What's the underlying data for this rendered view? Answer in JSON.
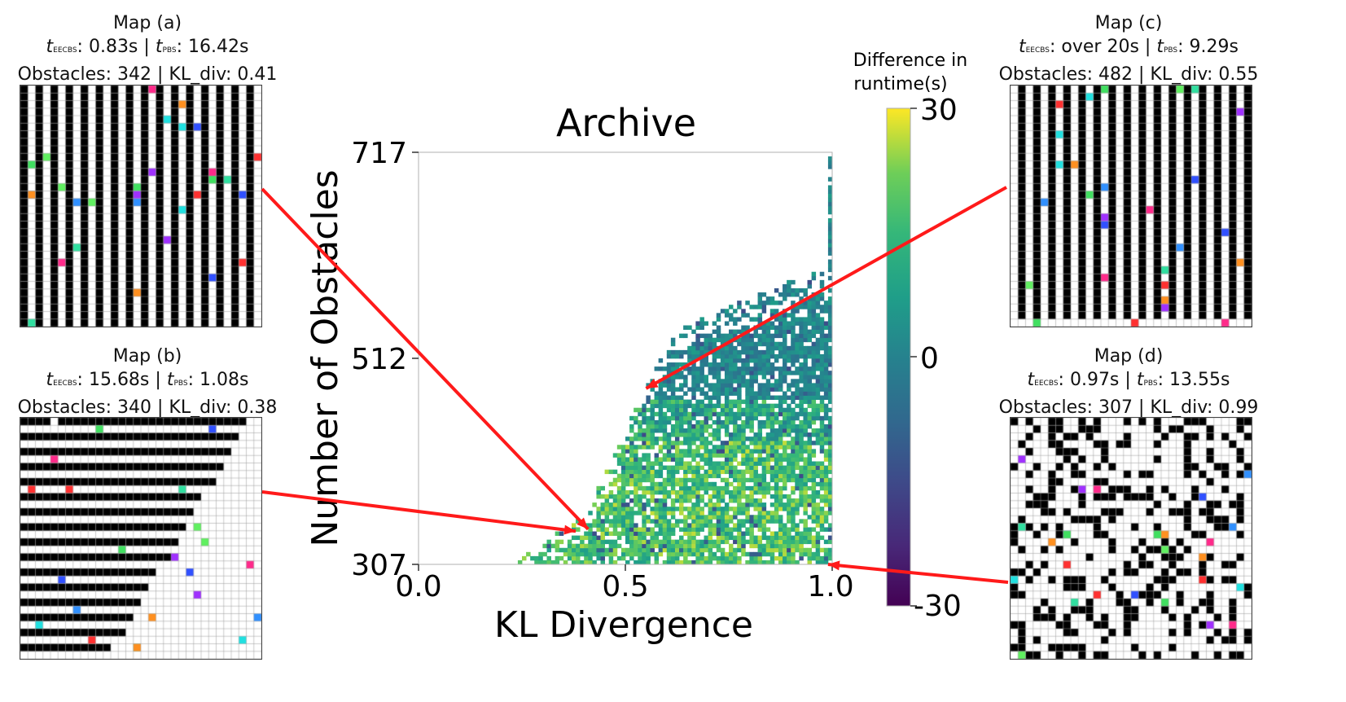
{
  "chart_data": {
    "type": "heatmap",
    "title": "Archive",
    "xlabel": "KL Divergence",
    "ylabel": "Number of Obstacles",
    "xlim": [
      0.0,
      1.0
    ],
    "ylim": [
      307,
      717
    ],
    "xticks": [
      "0.0",
      "0.5",
      "1.0"
    ],
    "yticks": [
      "307",
      "512",
      "717"
    ],
    "colorbar": {
      "label_line1": "Difference in",
      "label_line2": "runtime(s)",
      "range": [
        -30,
        30
      ],
      "ticks": [
        "30",
        "0",
        "-30"
      ],
      "colormap": "viridis"
    },
    "highlighted_points": [
      {
        "map": "Map (a)",
        "kl_div": 0.41,
        "obstacles": 342
      },
      {
        "map": "Map (b)",
        "kl_div": 0.38,
        "obstacles": 340
      },
      {
        "map": "Map (c)",
        "kl_div": 0.55,
        "obstacles": 482
      },
      {
        "map": "Map (d)",
        "kl_div": 0.99,
        "obstacles": 307
      }
    ]
  },
  "maps": {
    "a": {
      "title": "Map (a)",
      "sub_eecbs": "EECBS",
      "val_eecbs": ": 0.83s",
      "sep": " | ",
      "sub_pbs": "PBS",
      "val_pbs": ": 16.42s",
      "line3": "Obstacles: 342 | KL_div: 0.41"
    },
    "b": {
      "title": "Map (b)",
      "sub_eecbs": "EECBS",
      "val_eecbs": ": 15.68s",
      "sep": " | ",
      "sub_pbs": "PBS",
      "val_pbs": ": 1.08s",
      "line3": "Obstacles: 340 | KL_div: 0.38"
    },
    "c": {
      "title": "Map (c)",
      "sub_eecbs": "EECBS",
      "val_eecbs": ": over 20s",
      "sep": " | ",
      "sub_pbs": "PBS",
      "val_pbs": ": 9.29s",
      "line3": "Obstacles: 482 | KL_div: 0.55"
    },
    "d": {
      "title": "Map (d)",
      "sub_eecbs": "EECBS",
      "val_eecbs": ": 0.97s",
      "sep": " | ",
      "sub_pbs": "PBS",
      "val_pbs": ": 13.55s",
      "line3": "Obstacles: 307 | KL_div: 0.99"
    }
  },
  "colors": {
    "arrow": "#ff1a1a",
    "agents": [
      "#ff3030",
      "#3050ff",
      "#ff9020",
      "#40e060",
      "#ff2a8a",
      "#a030ff",
      "#20e0e0",
      "#3090ff",
      "#60f060",
      "#30e0a0"
    ]
  }
}
